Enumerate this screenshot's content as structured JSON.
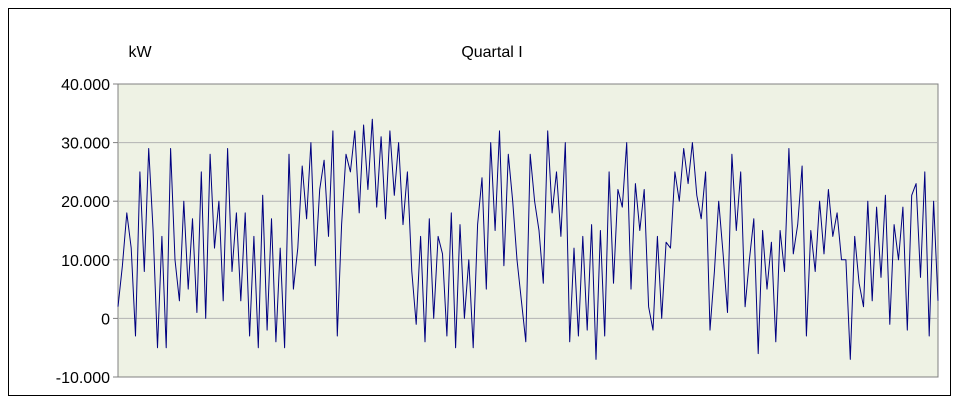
{
  "chart_data": {
    "type": "line",
    "title": "Quartal I",
    "ylabel": "kW",
    "xlabel": "",
    "ylim": [
      -10000,
      40000
    ],
    "yticks": [
      {
        "value": 40000,
        "label": "40.000"
      },
      {
        "value": 30000,
        "label": "30.000"
      },
      {
        "value": 20000,
        "label": "20.000"
      },
      {
        "value": 10000,
        "label": "10.000"
      },
      {
        "value": 0,
        "label": "0"
      },
      {
        "value": -10000,
        "label": "-10.000"
      }
    ],
    "grid": true,
    "legend": "none",
    "colors": {
      "line": "#000080",
      "plot_background": "#EEF2E4",
      "gridline": "#B3B3B3",
      "axis": "#808080"
    },
    "series": [
      {
        "values": [
          2000,
          9000,
          18000,
          12000,
          -3000,
          25000,
          8000,
          29000,
          15000,
          -5000,
          14000,
          -5000,
          29000,
          10000,
          3000,
          20000,
          5000,
          17000,
          1000,
          25000,
          0,
          28000,
          12000,
          20000,
          3000,
          29000,
          8000,
          18000,
          3000,
          18000,
          -3000,
          14000,
          -5000,
          21000,
          -2000,
          17000,
          -4000,
          12000,
          -5000,
          28000,
          5000,
          12000,
          26000,
          17000,
          30000,
          9000,
          22000,
          27000,
          14000,
          32000,
          -3000,
          16000,
          28000,
          25000,
          32000,
          18000,
          33000,
          22000,
          34000,
          19000,
          31000,
          17000,
          32000,
          21000,
          30000,
          16000,
          25000,
          8000,
          -1000,
          14000,
          -4000,
          17000,
          0,
          14000,
          11000,
          -3000,
          18000,
          -5000,
          16000,
          0,
          10000,
          -5000,
          16000,
          24000,
          5000,
          30000,
          15000,
          32000,
          9000,
          28000,
          20000,
          10000,
          3000,
          -4000,
          28000,
          20000,
          15000,
          6000,
          32000,
          18000,
          25000,
          14000,
          30000,
          -4000,
          12000,
          -3000,
          14000,
          -2000,
          16000,
          -7000,
          15000,
          -3000,
          25000,
          6000,
          22000,
          19000,
          30000,
          5000,
          23000,
          15000,
          22000,
          2000,
          -2000,
          14000,
          0,
          13000,
          12000,
          25000,
          20000,
          29000,
          23000,
          30000,
          21000,
          17000,
          25000,
          -2000,
          8000,
          20000,
          11000,
          1000,
          28000,
          15000,
          25000,
          2000,
          10000,
          17000,
          -6000,
          15000,
          5000,
          13000,
          -4000,
          15000,
          8000,
          29000,
          11000,
          16000,
          26000,
          -3000,
          15000,
          8000,
          20000,
          11000,
          22000,
          14000,
          18000,
          10000,
          10000,
          -7000,
          14000,
          6000,
          2000,
          20000,
          3000,
          19000,
          7000,
          21000,
          -1000,
          16000,
          10000,
          19000,
          -2000,
          21000,
          23000,
          7000,
          25000,
          -3000,
          20000,
          3000
        ]
      }
    ]
  }
}
